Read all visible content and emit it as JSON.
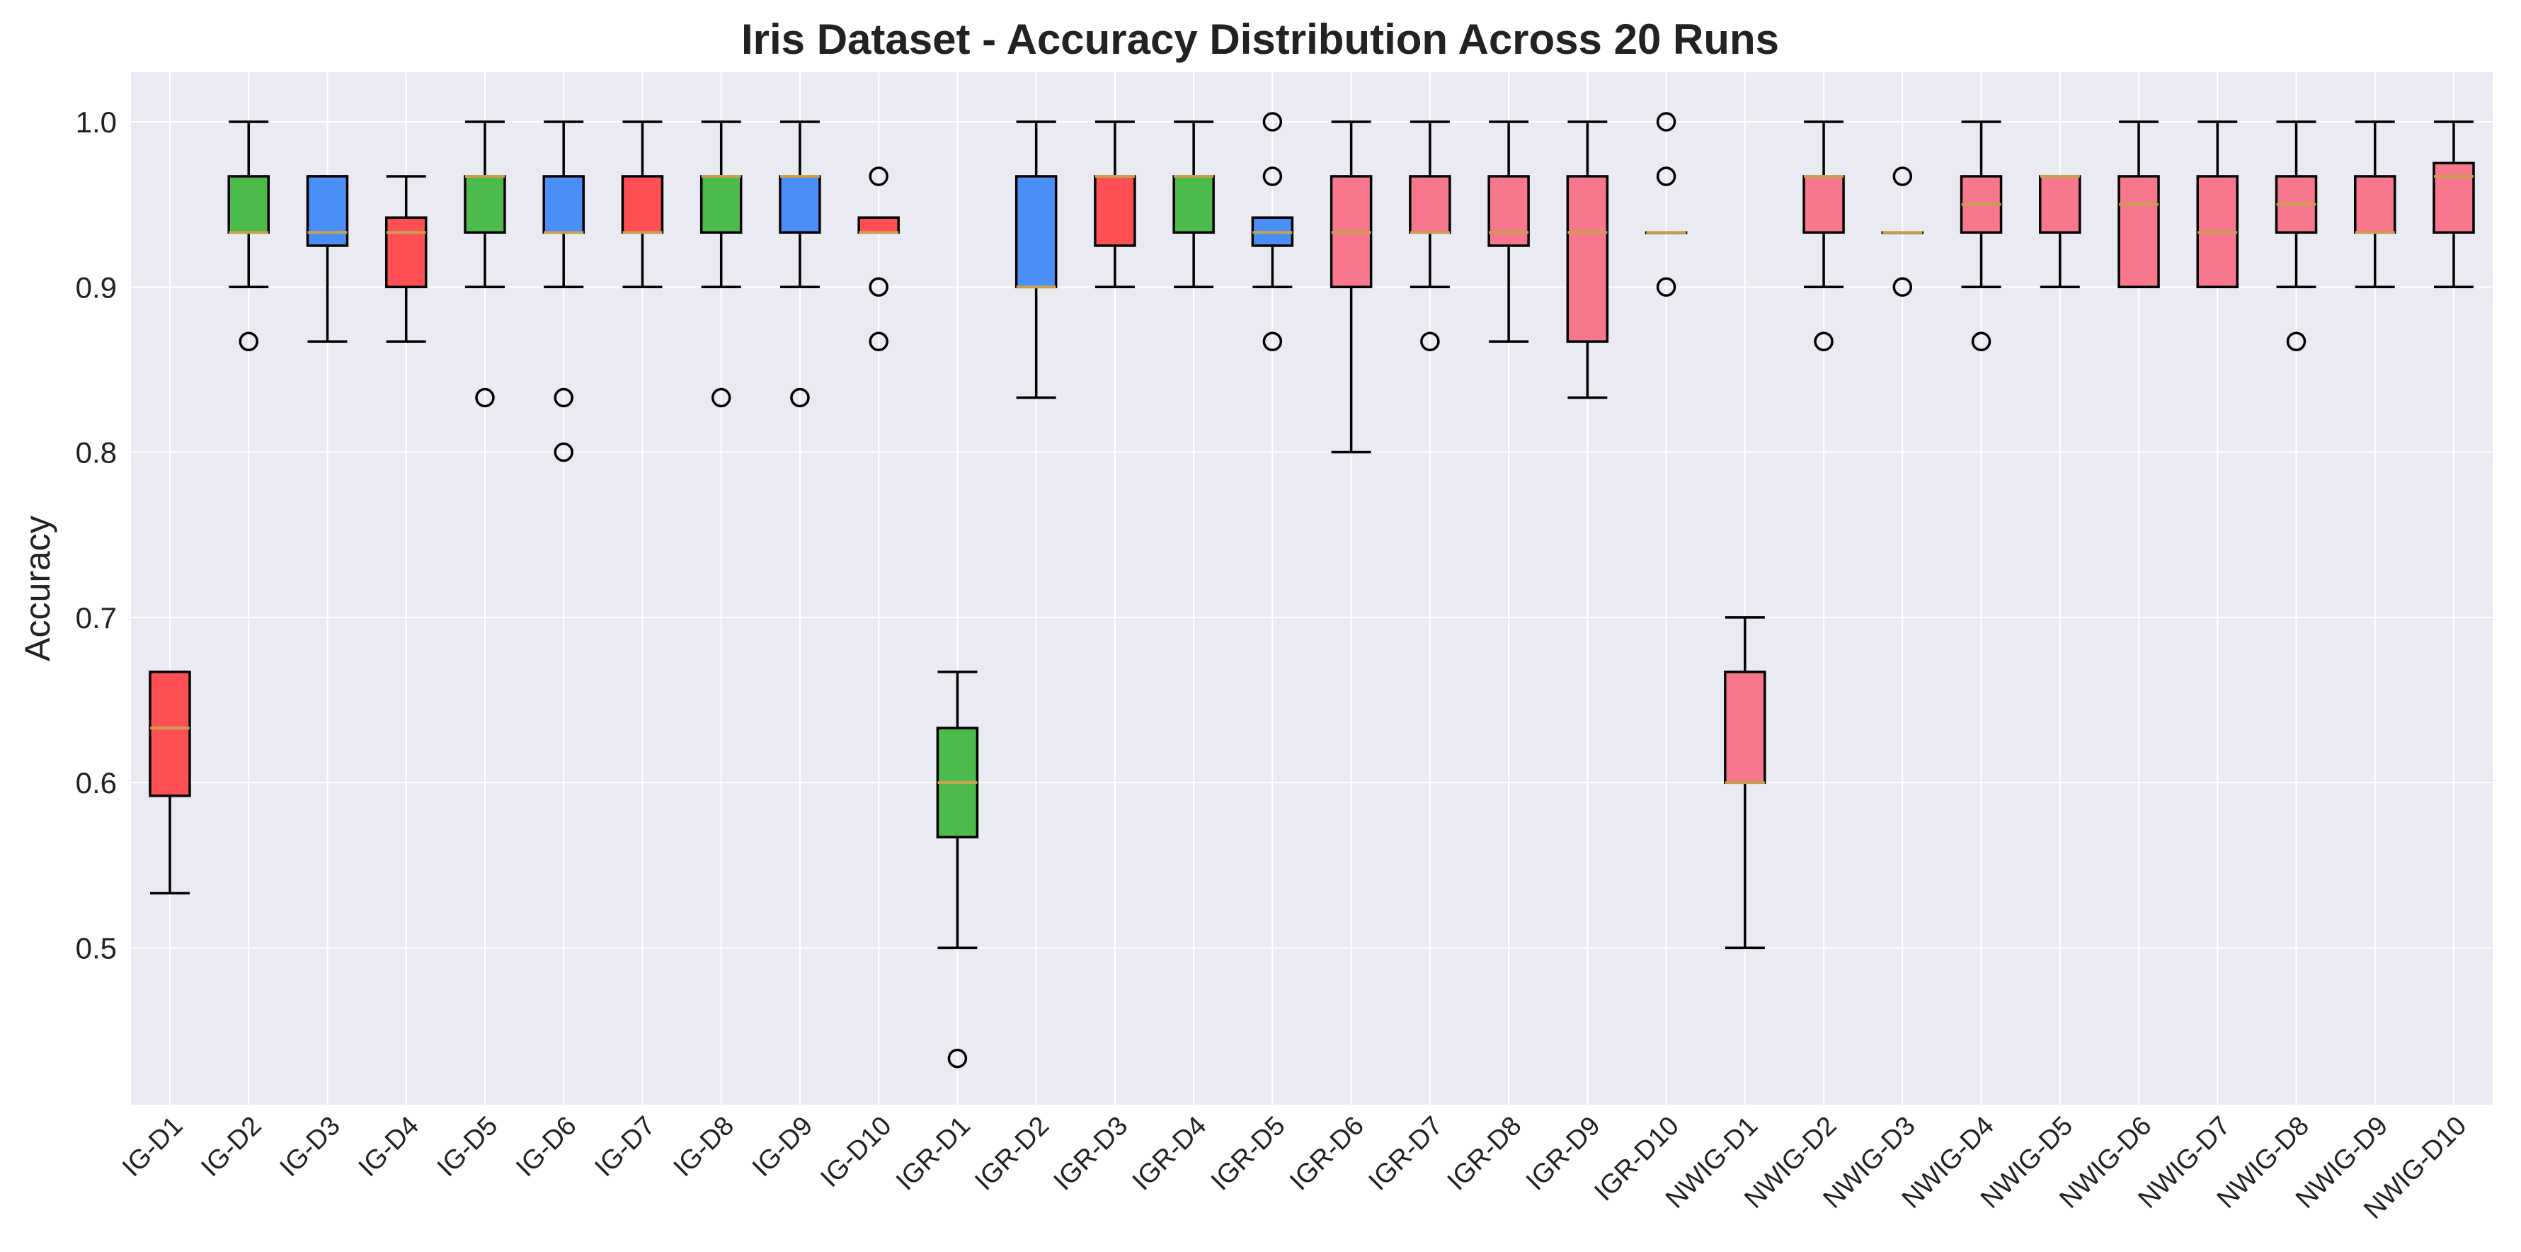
{
  "chart_data": {
    "type": "boxplot",
    "title": "Iris Dataset - Accuracy Distribution Across 20 Runs",
    "xlabel": "",
    "ylabel": "Accuracy",
    "ylim": [
      0.405,
      1.03
    ],
    "yticks": [
      0.5,
      0.6,
      0.7,
      0.8,
      0.9,
      1.0
    ],
    "ytick_labels": [
      "0.5",
      "0.6",
      "0.7",
      "0.8",
      "0.9",
      "1.0"
    ],
    "grid": true,
    "legend": "none",
    "colors": {
      "red": "#FF4F55",
      "green": "#4CBB4C",
      "blue": "#4A8EF7",
      "pink": "#F7778C",
      "median": "#C8A050",
      "background": "#EAEAF2",
      "grid": "#FFFFFF"
    },
    "boxes": [
      {
        "label": "IG-D1",
        "color": "red",
        "whislo": 0.533,
        "q1": 0.592,
        "med": 0.633,
        "q3": 0.667,
        "whishi": 0.667,
        "fliers": []
      },
      {
        "label": "IG-D2",
        "color": "green",
        "whislo": 0.9,
        "q1": 0.933,
        "med": 0.933,
        "q3": 0.967,
        "whishi": 1.0,
        "fliers": [
          0.867
        ]
      },
      {
        "label": "IG-D3",
        "color": "blue",
        "whislo": 0.867,
        "q1": 0.925,
        "med": 0.933,
        "q3": 0.967,
        "whishi": 0.967,
        "fliers": []
      },
      {
        "label": "IG-D4",
        "color": "red",
        "whislo": 0.867,
        "q1": 0.9,
        "med": 0.933,
        "q3": 0.942,
        "whishi": 0.967,
        "fliers": []
      },
      {
        "label": "IG-D5",
        "color": "green",
        "whislo": 0.9,
        "q1": 0.933,
        "med": 0.967,
        "q3": 0.967,
        "whishi": 1.0,
        "fliers": [
          0.833
        ]
      },
      {
        "label": "IG-D6",
        "color": "blue",
        "whislo": 0.9,
        "q1": 0.933,
        "med": 0.933,
        "q3": 0.967,
        "whishi": 1.0,
        "fliers": [
          0.833,
          0.8
        ]
      },
      {
        "label": "IG-D7",
        "color": "red",
        "whislo": 0.9,
        "q1": 0.933,
        "med": 0.933,
        "q3": 0.967,
        "whishi": 1.0,
        "fliers": []
      },
      {
        "label": "IG-D8",
        "color": "green",
        "whislo": 0.9,
        "q1": 0.933,
        "med": 0.967,
        "q3": 0.967,
        "whishi": 1.0,
        "fliers": [
          0.833
        ]
      },
      {
        "label": "IG-D9",
        "color": "blue",
        "whislo": 0.9,
        "q1": 0.933,
        "med": 0.967,
        "q3": 0.967,
        "whishi": 1.0,
        "fliers": [
          0.833
        ]
      },
      {
        "label": "IG-D10",
        "color": "red",
        "whislo": 0.933,
        "q1": 0.933,
        "med": 0.933,
        "q3": 0.942,
        "whishi": 0.942,
        "fliers": [
          0.967,
          0.9,
          0.867
        ]
      },
      {
        "label": "IGR-D1",
        "color": "green",
        "whislo": 0.5,
        "q1": 0.567,
        "med": 0.6,
        "q3": 0.633,
        "whishi": 0.667,
        "fliers": [
          0.433
        ]
      },
      {
        "label": "IGR-D2",
        "color": "blue",
        "whislo": 0.833,
        "q1": 0.9,
        "med": 0.9,
        "q3": 0.967,
        "whishi": 1.0,
        "fliers": []
      },
      {
        "label": "IGR-D3",
        "color": "red",
        "whislo": 0.9,
        "q1": 0.925,
        "med": 0.967,
        "q3": 0.967,
        "whishi": 1.0,
        "fliers": []
      },
      {
        "label": "IGR-D4",
        "color": "green",
        "whislo": 0.9,
        "q1": 0.933,
        "med": 0.967,
        "q3": 0.967,
        "whishi": 1.0,
        "fliers": []
      },
      {
        "label": "IGR-D5",
        "color": "blue",
        "whislo": 0.9,
        "q1": 0.925,
        "med": 0.933,
        "q3": 0.942,
        "whishi": 0.942,
        "fliers": [
          1.0,
          0.967,
          0.867
        ]
      },
      {
        "label": "IGR-D6",
        "color": "pink",
        "whislo": 0.8,
        "q1": 0.9,
        "med": 0.933,
        "q3": 0.967,
        "whishi": 1.0,
        "fliers": []
      },
      {
        "label": "IGR-D7",
        "color": "pink",
        "whislo": 0.9,
        "q1": 0.933,
        "med": 0.933,
        "q3": 0.967,
        "whishi": 1.0,
        "fliers": [
          0.867
        ]
      },
      {
        "label": "IGR-D8",
        "color": "pink",
        "whislo": 0.867,
        "q1": 0.925,
        "med": 0.933,
        "q3": 0.967,
        "whishi": 1.0,
        "fliers": []
      },
      {
        "label": "IGR-D9",
        "color": "pink",
        "whislo": 0.833,
        "q1": 0.867,
        "med": 0.933,
        "q3": 0.967,
        "whishi": 1.0,
        "fliers": []
      },
      {
        "label": "IGR-D10",
        "color": "pink",
        "whislo": 0.933,
        "q1": 0.933,
        "med": 0.933,
        "q3": 0.933,
        "whishi": 0.933,
        "fliers": [
          1.0,
          0.967,
          0.9
        ]
      },
      {
        "label": "NWIG-D1",
        "color": "pink",
        "whislo": 0.5,
        "q1": 0.6,
        "med": 0.6,
        "q3": 0.667,
        "whishi": 0.7,
        "fliers": []
      },
      {
        "label": "NWIG-D2",
        "color": "pink",
        "whislo": 0.9,
        "q1": 0.933,
        "med": 0.967,
        "q3": 0.967,
        "whishi": 1.0,
        "fliers": [
          0.867
        ]
      },
      {
        "label": "NWIG-D3",
        "color": "pink",
        "whislo": 0.933,
        "q1": 0.933,
        "med": 0.933,
        "q3": 0.933,
        "whishi": 0.933,
        "fliers": [
          0.967,
          0.9
        ]
      },
      {
        "label": "NWIG-D4",
        "color": "pink",
        "whislo": 0.9,
        "q1": 0.933,
        "med": 0.95,
        "q3": 0.967,
        "whishi": 1.0,
        "fliers": [
          0.867
        ]
      },
      {
        "label": "NWIG-D5",
        "color": "pink",
        "whislo": 0.9,
        "q1": 0.933,
        "med": 0.967,
        "q3": 0.967,
        "whishi": 0.967,
        "fliers": []
      },
      {
        "label": "NWIG-D6",
        "color": "pink",
        "whislo": 0.9,
        "q1": 0.9,
        "med": 0.95,
        "q3": 0.967,
        "whishi": 1.0,
        "fliers": []
      },
      {
        "label": "NWIG-D7",
        "color": "pink",
        "whislo": 0.9,
        "q1": 0.9,
        "med": 0.933,
        "q3": 0.967,
        "whishi": 1.0,
        "fliers": []
      },
      {
        "label": "NWIG-D8",
        "color": "pink",
        "whislo": 0.9,
        "q1": 0.933,
        "med": 0.95,
        "q3": 0.967,
        "whishi": 1.0,
        "fliers": [
          0.867
        ]
      },
      {
        "label": "NWIG-D9",
        "color": "pink",
        "whislo": 0.9,
        "q1": 0.933,
        "med": 0.933,
        "q3": 0.967,
        "whishi": 1.0,
        "fliers": []
      },
      {
        "label": "NWIG-D10",
        "color": "pink",
        "whislo": 0.9,
        "q1": 0.933,
        "med": 0.967,
        "q3": 0.975,
        "whishi": 1.0,
        "fliers": []
      }
    ]
  }
}
